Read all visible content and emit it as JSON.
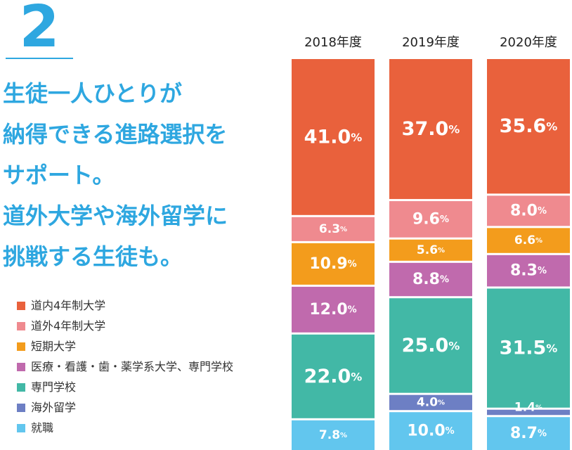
{
  "heading": {
    "number": "2",
    "lines": [
      "生徒一人ひとりが",
      "納得できる進路選択を",
      "サポート。",
      "道外大学や海外留学に",
      "挑戦する生徒も。"
    ]
  },
  "colors": {
    "道内4年制大学": "#e9613c",
    "道外4年制大学": "#ef8a8f",
    "短期大学": "#f39c1c",
    "医療・看護・歯・薬学系大学、専門学校": "#c06aad",
    "専門学校": "#42b8a6",
    "海外留学": "#6d7fc4",
    "就職": "#62c6ee",
    "accent": "#2ea7e0"
  },
  "chart_data": {
    "type": "bar",
    "stacked": true,
    "orientation": "vertical",
    "unit": "%",
    "categories": [
      "2018年度",
      "2019年度",
      "2020年度"
    ],
    "series": [
      {
        "name": "道内4年制大学",
        "values": [
          41.0,
          37.0,
          35.6
        ]
      },
      {
        "name": "道外4年制大学",
        "values": [
          6.3,
          9.6,
          8.0
        ]
      },
      {
        "name": "短期大学",
        "values": [
          10.9,
          5.6,
          6.6
        ]
      },
      {
        "name": "医療・看護・歯・薬学系大学、専門学校",
        "values": [
          12.0,
          8.8,
          8.3
        ]
      },
      {
        "name": "専門学校",
        "values": [
          22.0,
          25.0,
          31.5
        ]
      },
      {
        "name": "海外留学",
        "values": [
          0,
          4.0,
          1.4
        ]
      },
      {
        "name": "就職",
        "values": [
          7.8,
          10.0,
          8.7
        ]
      }
    ],
    "labels": [
      [
        "41.0",
        "6.3",
        "10.9",
        "12.0",
        "22.0",
        null,
        "7.8"
      ],
      [
        "37.0",
        "9.6",
        "5.6",
        "8.8",
        "25.0",
        "4.0",
        "10.0"
      ],
      [
        "35.6",
        "8.0",
        "6.6",
        "8.3",
        "31.5",
        "1.4",
        "8.7"
      ]
    ],
    "legend_position": "bottom-left"
  }
}
